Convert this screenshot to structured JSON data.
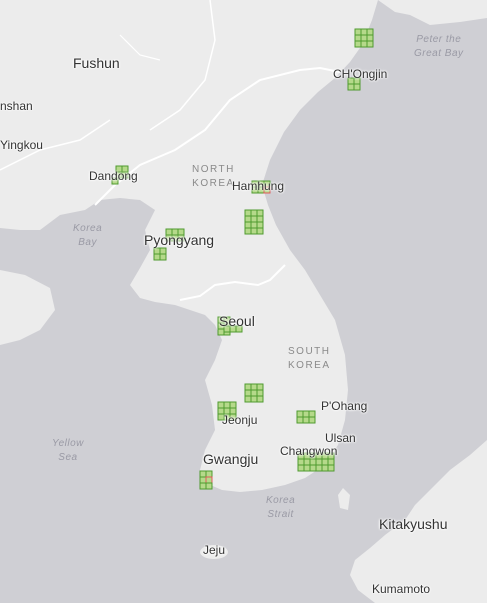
{
  "map": {
    "colors": {
      "water": "#cfcfd4",
      "land": "#ececec",
      "border": "#ffffff",
      "grid_fill": "#b5d98a",
      "grid_stroke": "#4f9a2f",
      "alert": "#e05a5a"
    },
    "countries": [
      {
        "line1": "NORTH",
        "line2": "KOREA"
      },
      {
        "line1": "SOUTH",
        "line2": "KOREA"
      }
    ],
    "water_bodies": [
      {
        "line1": "Peter the",
        "line2": "Great Bay"
      },
      {
        "line1": "Korea",
        "line2": "Bay"
      },
      {
        "line1": "Yellow",
        "line2": "Sea"
      },
      {
        "line1": "Korea",
        "line2": "Strait"
      }
    ],
    "cities": [
      "Fushun",
      "CH'Ongjin",
      "nshan",
      "Yingkou",
      "Dandong",
      "Hamhung",
      "Pyongyang",
      "Seoul",
      "P'Ohang",
      "Jeonju",
      "Ulsan",
      "Changwon",
      "Gwangju",
      "Kitakyushu",
      "Jeju",
      "Kumamoto"
    ]
  }
}
